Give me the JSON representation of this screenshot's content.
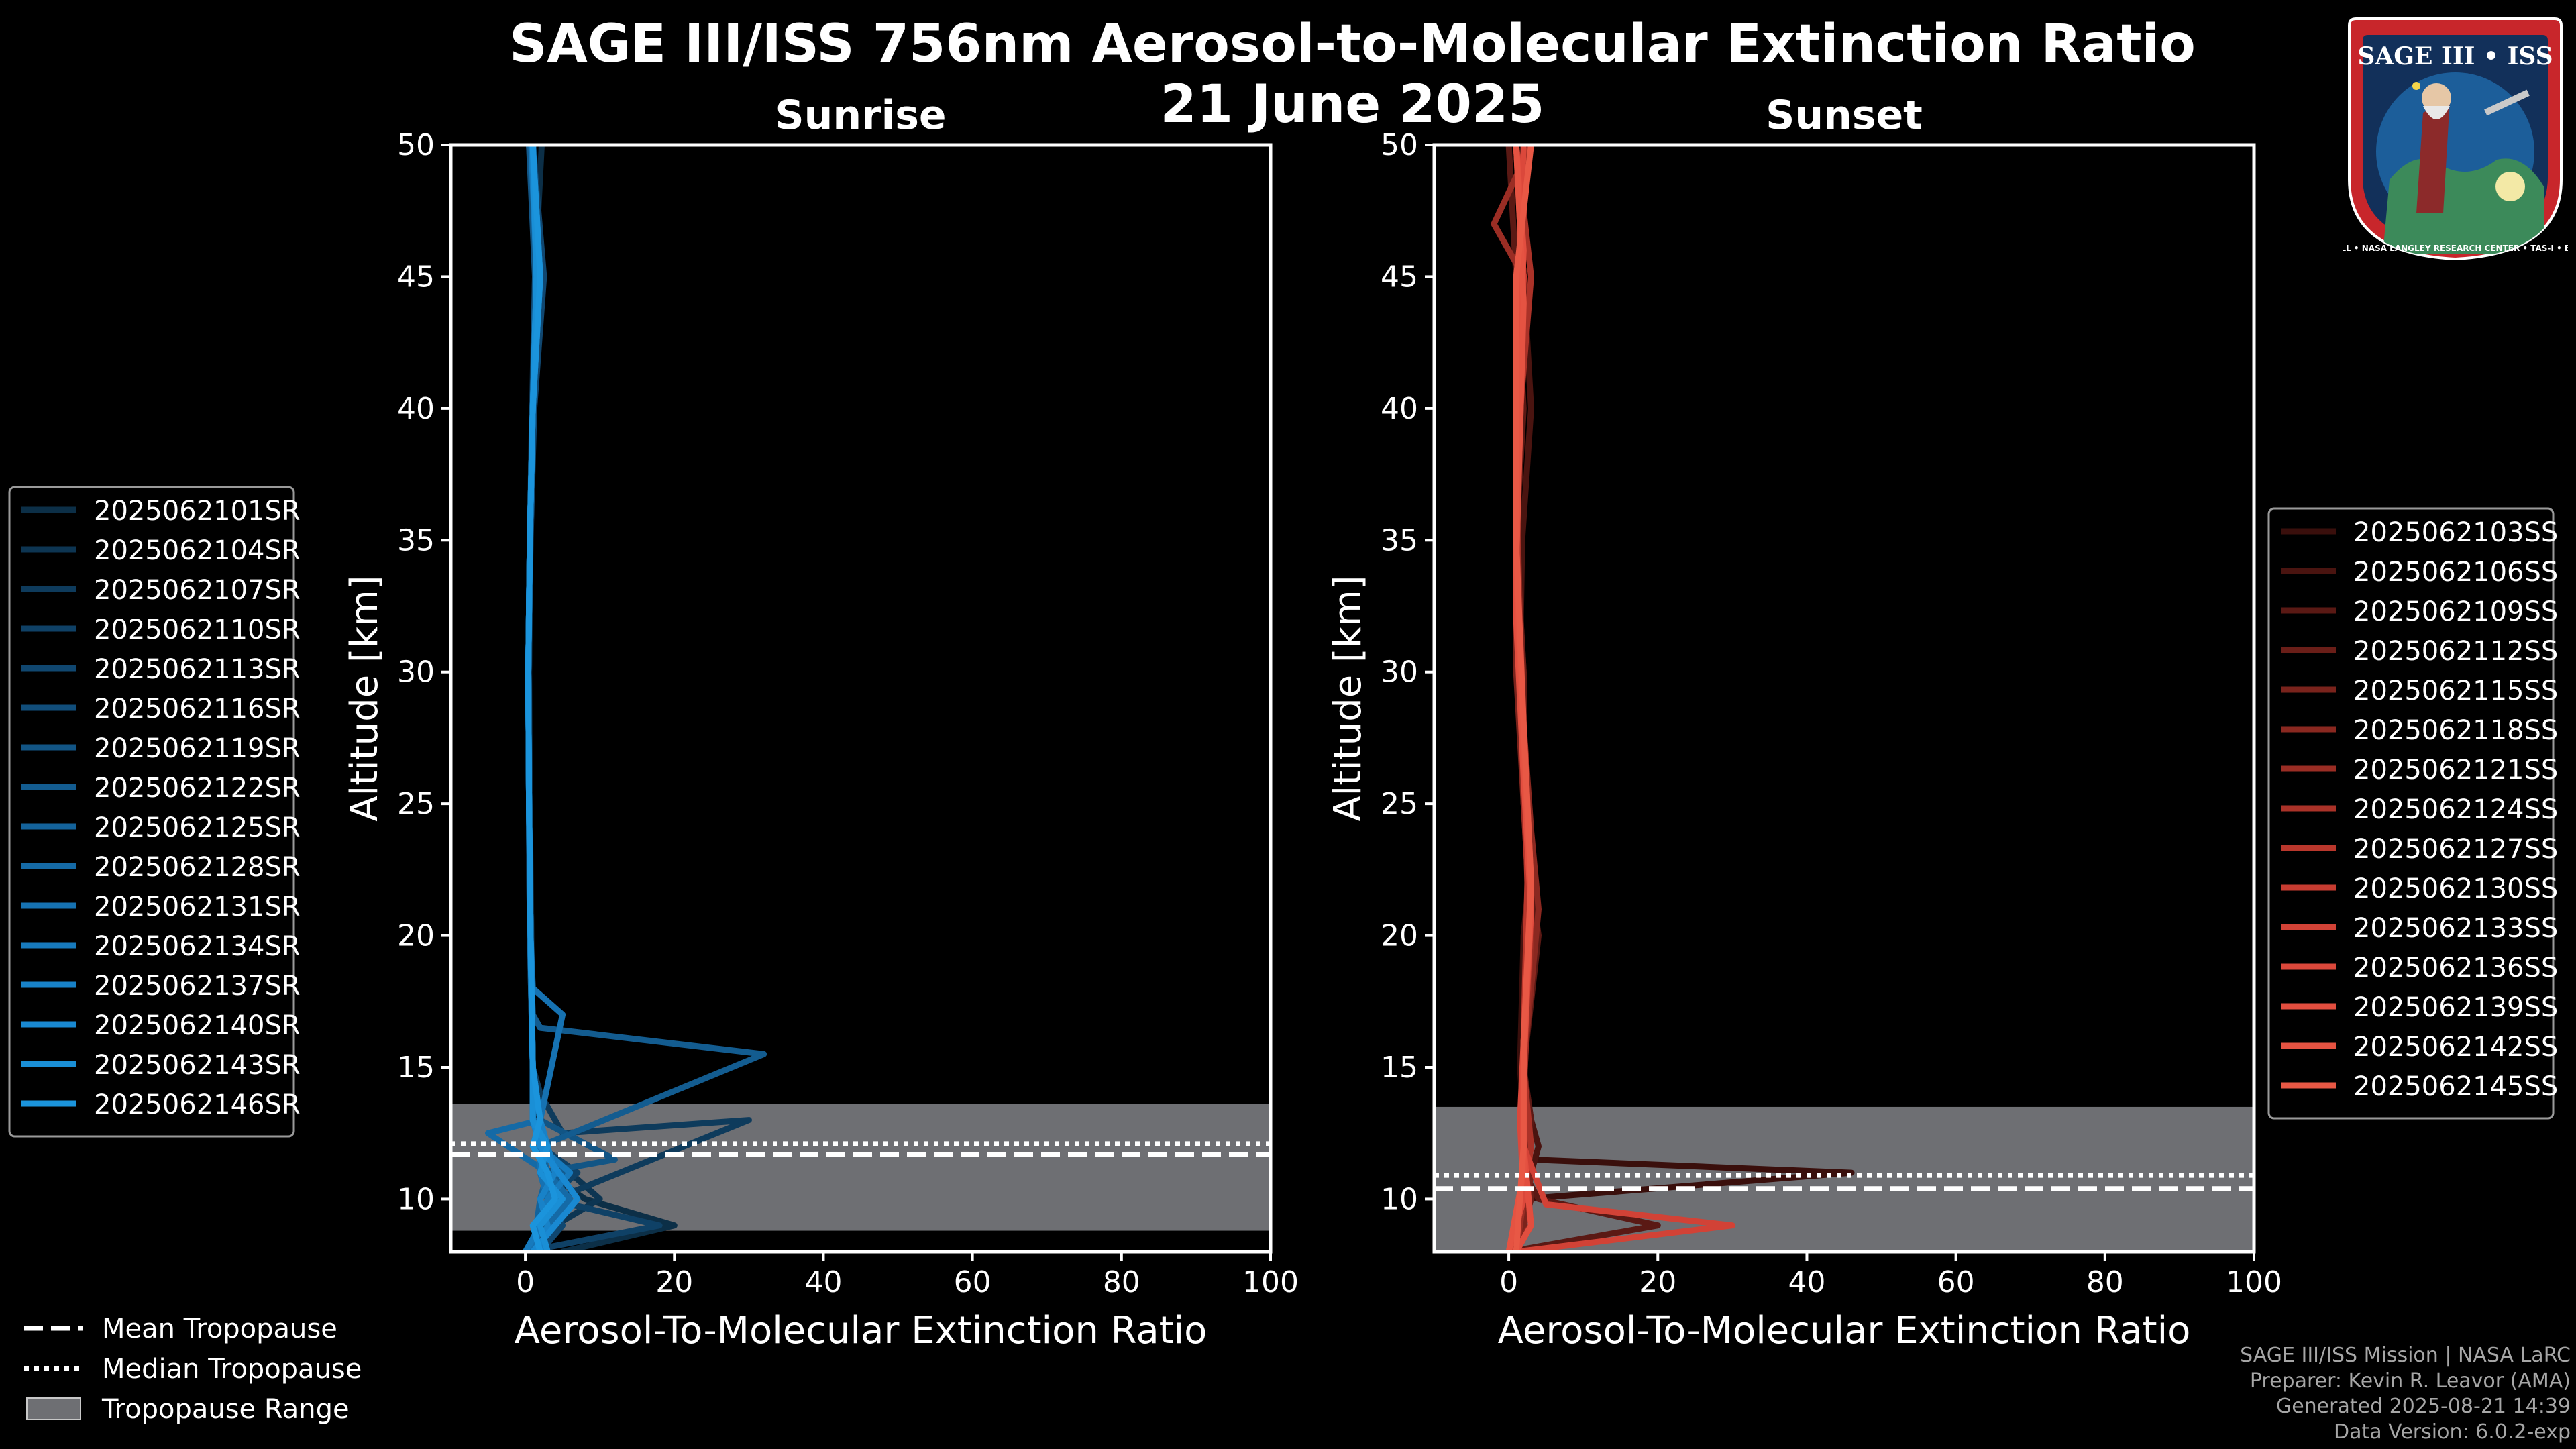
{
  "title": "SAGE III/ISS 756nm Aerosol-to-Molecular Extinction Ratio",
  "subtitle": "21 June 2025",
  "logo": {
    "text": "SAGE III • ISS",
    "ring_text": "BALL • NASA LANGLEY RESEARCH CENTER • TAS-I • ESA"
  },
  "colors": {
    "sunrise_accent": "#1a8fd6",
    "sunset_accent": "#e8553f",
    "tropo_band": "#6e6f73"
  },
  "footer": {
    "line1": "SAGE III/ISS Mission | NASA LaRC",
    "line2": "Preparer: Kevin R. Leavor (AMA)",
    "line3": "Generated 2025-08-21 14:39",
    "line4": "Data Version: 6.0.2-exp"
  },
  "bottom_legend": [
    {
      "label": "Mean Tropopause",
      "style": "dashed"
    },
    {
      "label": "Median Tropopause",
      "style": "dotted"
    },
    {
      "label": "Tropopause Range",
      "style": "band"
    }
  ],
  "chart_data": [
    {
      "type": "line",
      "title": "Sunrise",
      "xlabel": "Aerosol-To-Molecular Extinction Ratio",
      "ylabel": "Altitude [km]",
      "xlim": [
        -10,
        100
      ],
      "ylim": [
        8,
        50
      ],
      "xticks": [
        0,
        20,
        40,
        60,
        80,
        100
      ],
      "yticks": [
        10,
        15,
        20,
        25,
        30,
        35,
        40,
        45,
        50
      ],
      "tropopause": {
        "range": [
          8.8,
          13.6
        ],
        "mean": 11.7,
        "median": 12.1
      },
      "legend_location": "left",
      "series_labels": [
        "2025062101SR",
        "2025062104SR",
        "2025062107SR",
        "2025062110SR",
        "2025062113SR",
        "2025062116SR",
        "2025062119SR",
        "2025062122SR",
        "2025062125SR",
        "2025062128SR",
        "2025062131SR",
        "2025062134SR",
        "2025062137SR",
        "2025062140SR",
        "2025062143SR",
        "2025062146SR"
      ],
      "series_colors": [
        "#0c2f47",
        "#0d3552",
        "#0e3b5c",
        "#0f4166",
        "#104770",
        "#114e7b",
        "#125585",
        "#135c90",
        "#14639b",
        "#156aa6",
        "#1672b2",
        "#177abd",
        "#1882c8",
        "#1989d2",
        "#1a8fd6",
        "#1b94dc"
      ],
      "series": [
        {
          "name": "2025062101SR",
          "x": [
            5,
            20,
            8,
            3,
            2,
            1.2,
            1,
            0.8,
            0.6,
            0.5,
            0.7,
            0.9,
            1.3,
            2.2
          ],
          "y": [
            8,
            9,
            10,
            11,
            12,
            13,
            15,
            20,
            25,
            30,
            35,
            40,
            45,
            50
          ]
        },
        {
          "name": "2025062104SR",
          "x": [
            2,
            4,
            10,
            6,
            2,
            1.5,
            1,
            0.7,
            0.5,
            0.5,
            0.6,
            0.9,
            1.5,
            1.2
          ],
          "y": [
            8,
            9,
            10,
            11,
            12,
            13,
            15,
            20,
            25,
            30,
            35,
            40,
            45,
            50
          ]
        },
        {
          "name": "2025062107SR",
          "x": [
            1,
            3,
            4,
            30,
            5,
            2,
            1,
            0.6,
            0.5,
            0.4,
            0.6,
            1,
            2,
            1
          ],
          "y": [
            8,
            9,
            10,
            13,
            12.5,
            14,
            15,
            20,
            25,
            30,
            35,
            40,
            45,
            50
          ]
        },
        {
          "name": "2025062110SR",
          "x": [
            0,
            18,
            3,
            7,
            2,
            1,
            1,
            0.6,
            0.5,
            0.4,
            0.6,
            1,
            1.5,
            0.5
          ],
          "y": [
            8,
            9,
            10,
            11,
            12,
            13,
            15,
            20,
            25,
            30,
            35,
            40,
            45,
            50
          ]
        },
        {
          "name": "2025062113SR",
          "x": [
            2,
            5,
            3,
            2,
            2,
            1,
            1,
            0.7,
            0.5,
            0.4,
            0.7,
            1.2,
            2.5,
            1
          ],
          "y": [
            8,
            9,
            10,
            11,
            12,
            13,
            15,
            20,
            25,
            30,
            35,
            40,
            45,
            50
          ]
        },
        {
          "name": "2025062116SR",
          "x": [
            1,
            2,
            5,
            3,
            1,
            2,
            1,
            0.7,
            0.5,
            0.4,
            0.6,
            1,
            1.8,
            1
          ],
          "y": [
            8,
            9,
            10,
            11,
            12,
            13,
            15,
            20,
            25,
            30,
            35,
            40,
            45,
            50
          ]
        },
        {
          "name": "2025062119SR",
          "x": [
            3,
            2,
            4,
            2,
            12,
            2,
            1,
            0.6,
            0.5,
            0.4,
            0.6,
            1,
            1.3,
            0.5
          ],
          "y": [
            8,
            9,
            10,
            11,
            11.5,
            13,
            15,
            20,
            25,
            30,
            35,
            40,
            45,
            50
          ]
        },
        {
          "name": "2025062122SR",
          "x": [
            2,
            3,
            2,
            5,
            2,
            32,
            2,
            1,
            0.6,
            0.5,
            0.4,
            0.6,
            1,
            2,
            0.5
          ],
          "y": [
            8,
            9,
            10,
            11,
            12,
            15.5,
            16.5,
            17,
            20,
            25,
            30,
            35,
            40,
            45,
            50
          ]
        },
        {
          "name": "2025062125SR",
          "x": [
            1,
            2,
            3,
            2,
            2,
            1,
            0.7,
            0.5,
            0.4,
            0.6,
            1,
            1.6,
            1
          ],
          "y": [
            8,
            10,
            11,
            12,
            13,
            15,
            20,
            25,
            30,
            35,
            40,
            45,
            50
          ]
        },
        {
          "name": "2025062128SR",
          "x": [
            2,
            3,
            6,
            3,
            -5,
            2,
            1,
            0.7,
            0.5,
            0.4,
            0.6,
            1,
            1.5,
            1
          ],
          "y": [
            8,
            9,
            10,
            11,
            12.5,
            13,
            15,
            20,
            25,
            30,
            35,
            40,
            45,
            50
          ]
        },
        {
          "name": "2025062131SR",
          "x": [
            1,
            2,
            3,
            2,
            2,
            5,
            1,
            0.7,
            0.5,
            0.4,
            0.6,
            1,
            2,
            1
          ],
          "y": [
            8,
            9,
            10,
            11,
            13,
            17,
            18,
            20,
            25,
            30,
            35,
            40,
            45,
            50
          ]
        },
        {
          "name": "2025062134SR",
          "x": [
            0,
            2,
            3,
            6,
            2,
            1,
            1,
            0.7,
            0.5,
            0.4,
            0.6,
            1,
            1.5,
            0.8
          ],
          "y": [
            8,
            9,
            10,
            11,
            12,
            13,
            15,
            20,
            25,
            30,
            35,
            40,
            45,
            50
          ]
        },
        {
          "name": "2025062137SR",
          "x": [
            2,
            3,
            2,
            4,
            3,
            2,
            1,
            0.7,
            0.5,
            0.4,
            0.6,
            1,
            2,
            1
          ],
          "y": [
            8,
            9,
            10,
            11,
            12,
            13,
            15,
            20,
            25,
            30,
            35,
            40,
            45,
            50
          ]
        },
        {
          "name": "2025062140SR",
          "x": [
            1,
            4,
            7,
            2,
            1,
            1,
            0.7,
            0.5,
            0.4,
            0.6,
            1,
            1.5,
            1
          ],
          "y": [
            8,
            9,
            10,
            12,
            13,
            15,
            20,
            25,
            30,
            35,
            40,
            45,
            50
          ]
        },
        {
          "name": "2025062143SR",
          "x": [
            3,
            2,
            5,
            2,
            3,
            1,
            1,
            0.7,
            0.5,
            0.4,
            0.6,
            1,
            1.5,
            1
          ],
          "y": [
            8,
            9,
            10,
            11,
            12,
            13,
            15,
            20,
            25,
            30,
            35,
            40,
            45,
            50
          ]
        },
        {
          "name": "2025062146SR",
          "x": [
            2,
            1,
            4,
            3,
            1,
            2,
            1,
            0.7,
            0.5,
            0.4,
            0.6,
            1,
            2,
            1
          ],
          "y": [
            8,
            9,
            10,
            11,
            12,
            13,
            15,
            20,
            25,
            30,
            35,
            40,
            45,
            50
          ]
        }
      ]
    },
    {
      "type": "line",
      "title": "Sunset",
      "xlabel": "Aerosol-To-Molecular Extinction Ratio",
      "ylabel": "Altitude [km]",
      "xlim": [
        -10,
        100
      ],
      "ylim": [
        8,
        50
      ],
      "xticks": [
        0,
        20,
        40,
        60,
        80,
        100
      ],
      "yticks": [
        10,
        15,
        20,
        25,
        30,
        35,
        40,
        45,
        50
      ],
      "tropopause": {
        "range": [
          8,
          13.5
        ],
        "mean": 10.4,
        "median": 10.9
      },
      "legend_location": "right",
      "series_labels": [
        "2025062103SS",
        "2025062106SS",
        "2025062109SS",
        "2025062112SS",
        "2025062115SS",
        "2025062118SS",
        "2025062121SS",
        "2025062124SS",
        "2025062127SS",
        "2025062130SS",
        "2025062133SS",
        "2025062136SS",
        "2025062139SS",
        "2025062142SS",
        "2025062145SS"
      ],
      "series_colors": [
        "#3a0f0c",
        "#4a1410",
        "#5a1914",
        "#6a1e18",
        "#7a231c",
        "#8a2820",
        "#9a2d24",
        "#aa3228",
        "#b9372c",
        "#c73c31",
        "#d24236",
        "#db483b",
        "#e24e3f",
        "#e55342",
        "#e85845"
      ],
      "series": [
        {
          "name": "2025062103SS",
          "x": [
            0,
            1,
            2,
            46,
            3,
            2,
            1.5,
            2,
            3,
            2.5,
            1.5,
            1.5,
            1,
            2,
            1
          ],
          "y": [
            8,
            9,
            10,
            11,
            11.5,
            13,
            15,
            20,
            22,
            25,
            30,
            35,
            40,
            45,
            50
          ]
        },
        {
          "name": "2025062106SS",
          "x": [
            1,
            2,
            4,
            3,
            2,
            2,
            3,
            2,
            1.5,
            1.8,
            3,
            1
          ],
          "y": [
            8,
            10,
            12,
            13,
            15,
            20,
            23,
            25,
            30,
            35,
            40,
            50
          ]
        },
        {
          "name": "2025062109SS",
          "x": [
            0,
            20,
            4,
            2,
            3,
            2,
            4,
            3,
            2,
            2,
            1,
            2,
            0
          ],
          "y": [
            8,
            9,
            10,
            11,
            13,
            15,
            20,
            22,
            25,
            30,
            35,
            40,
            50
          ]
        },
        {
          "name": "2025062112SS",
          "x": [
            1,
            3,
            2,
            2,
            3,
            2,
            2,
            1,
            2,
            1
          ],
          "y": [
            8,
            10,
            12,
            14,
            20,
            25,
            30,
            35,
            45,
            50
          ]
        },
        {
          "name": "2025062115SS",
          "x": [
            1,
            2,
            3,
            2,
            2,
            3,
            3,
            2,
            1,
            1,
            2,
            1
          ],
          "y": [
            8,
            9,
            11,
            13,
            15,
            21,
            23,
            25,
            30,
            35,
            45,
            50
          ]
        },
        {
          "name": "2025062118SS",
          "x": [
            0,
            3,
            2,
            2,
            4,
            3,
            2,
            1.5,
            1,
            2,
            1
          ],
          "y": [
            8,
            9,
            11,
            15,
            21,
            24,
            28,
            32,
            38,
            45,
            50
          ]
        },
        {
          "name": "2025062121SS",
          "x": [
            1,
            2,
            2,
            3,
            2,
            1.5,
            1,
            2,
            -2,
            3
          ],
          "y": [
            8,
            10,
            14,
            20,
            25,
            30,
            35,
            45,
            47,
            50
          ]
        },
        {
          "name": "2025062124SS",
          "x": [
            0,
            2,
            3,
            2,
            3,
            2,
            1.5,
            1,
            3,
            1
          ],
          "y": [
            8,
            10,
            12,
            15,
            22,
            26,
            30,
            38,
            45,
            50
          ]
        },
        {
          "name": "2025062127SS",
          "x": [
            1,
            3,
            2,
            2,
            2.5,
            2,
            1,
            2,
            1
          ],
          "y": [
            8,
            9,
            12,
            16,
            22,
            27,
            34,
            44,
            50
          ]
        },
        {
          "name": "2025062130SS",
          "x": [
            0,
            2,
            2,
            3,
            2,
            1,
            2,
            1
          ],
          "y": [
            8,
            10,
            15,
            21,
            27,
            35,
            45,
            50
          ]
        },
        {
          "name": "2025062133SS",
          "x": [
            1,
            30,
            5,
            2,
            2,
            3,
            2,
            1,
            2,
            1
          ],
          "y": [
            8,
            9,
            9.8,
            12,
            15,
            21,
            27,
            35,
            45,
            50
          ]
        },
        {
          "name": "2025062136SS",
          "x": [
            0,
            2,
            1.5,
            2,
            3,
            2,
            1,
            1,
            2
          ],
          "y": [
            8,
            10,
            13,
            16,
            22,
            28,
            34,
            42,
            50
          ]
        },
        {
          "name": "2025062139SS",
          "x": [
            1,
            3,
            2,
            2,
            3,
            2,
            1,
            1,
            2,
            1
          ],
          "y": [
            8,
            9,
            12,
            16,
            21,
            26,
            32,
            40,
            46,
            50
          ]
        },
        {
          "name": "2025062142SS",
          "x": [
            0,
            2,
            2,
            3,
            2,
            1,
            2,
            1
          ],
          "y": [
            8,
            11,
            15,
            22,
            27,
            34,
            44,
            50
          ]
        },
        {
          "name": "2025062145SS",
          "x": [
            1,
            2,
            2,
            3,
            2,
            1,
            1,
            3
          ],
          "y": [
            8,
            12,
            16,
            22,
            28,
            35,
            45,
            50
          ]
        }
      ]
    }
  ]
}
